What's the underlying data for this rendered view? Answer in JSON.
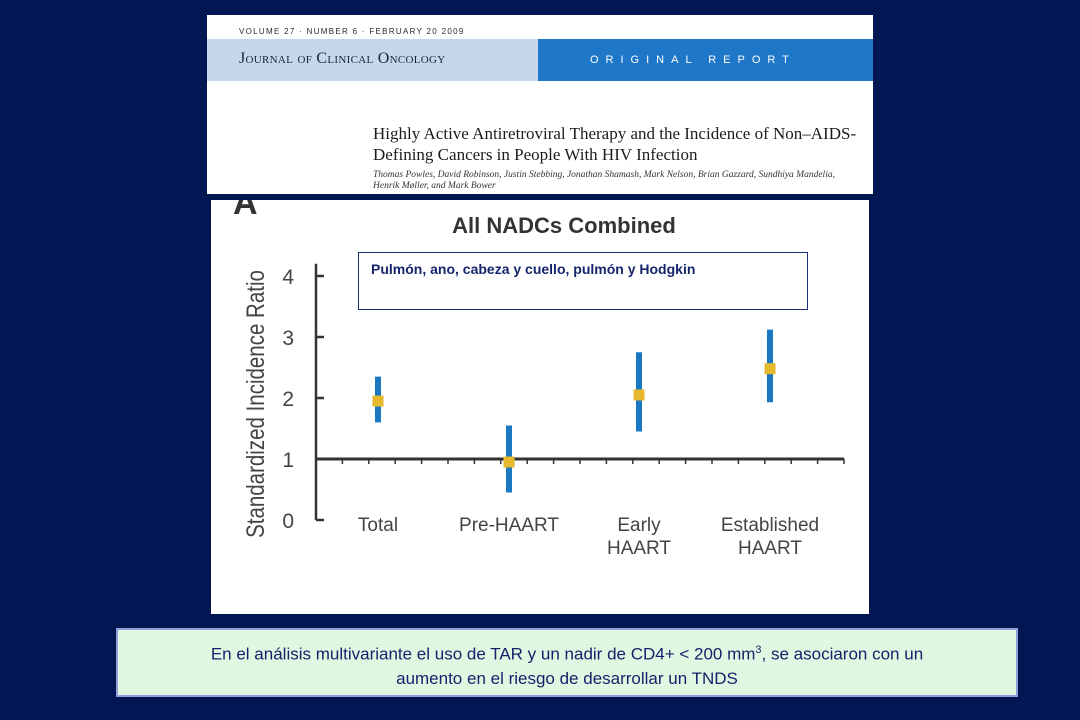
{
  "journal": {
    "volume_line": "VOLUME 27 · NUMBER 6 · FEBRUARY 20 2009",
    "journal_name": "Journal of Clinical Oncology",
    "report_type": "ORIGINAL REPORT",
    "article_title": "Highly Active Antiretroviral Therapy and the Incidence of Non–AIDS-Defining Cancers in People With HIV Infection",
    "authors": "Thomas Powles, David Robinson, Justin Stebbing, Jonathan Shamash, Mark Nelson, Brian Gazzard, Sundhiya Mandelia, Henrik Møller, and Mark Bower"
  },
  "callout": {
    "text": "Pulmón, ano, cabeza y cuello, pulmón y Hodgkin"
  },
  "conclusion": {
    "line1_before_sup": "En el análisis multivariante el uso de TAR y un nadir de CD4+ < 200 mm",
    "superscript": "3",
    "line1_after_sup": ", se asociaron con un",
    "line2": "aumento en el riesgo de desarrollar  un TNDS"
  },
  "colors": {
    "background": "#031654",
    "error_bar": "#1a78c2",
    "point": "#e6b82e",
    "axis": "#333333",
    "journal_band": "#c5d7ea",
    "report_band": "#1f77c8"
  },
  "chart_data": {
    "type": "scatter",
    "panel_letter": "A",
    "title": "All NADCs Combined",
    "ylabel": "Standardized Incidence Ratio",
    "xlabel": "",
    "ylim": [
      0,
      4.2
    ],
    "yticks": [
      0,
      1,
      2,
      3,
      4
    ],
    "reference_line": 1,
    "categories": [
      [
        "Total"
      ],
      [
        "Pre-HAART"
      ],
      [
        "Early",
        "HAART"
      ],
      [
        "Established",
        "HAART"
      ]
    ],
    "points": [
      {
        "category": "Total",
        "value": 1.95,
        "lower": 1.6,
        "upper": 2.35
      },
      {
        "category": "Pre-HAART",
        "value": 0.95,
        "lower": 0.45,
        "upper": 1.55
      },
      {
        "category": "Early HAART",
        "value": 2.05,
        "lower": 1.45,
        "upper": 2.75
      },
      {
        "category": "Established HAART",
        "value": 2.48,
        "lower": 1.93,
        "upper": 3.12
      }
    ]
  }
}
